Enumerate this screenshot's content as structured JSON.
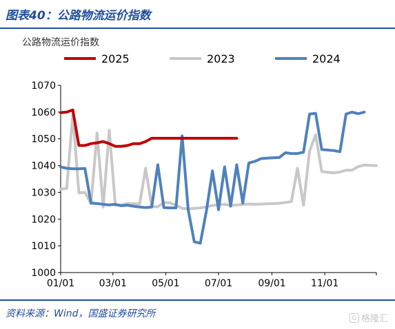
{
  "header": {
    "title": "图表40：公路物流运价指数"
  },
  "footer": {
    "source": "资料来源：Wind，国盛证券研究所"
  },
  "watermark": {
    "text": "格隆汇",
    "icon": "G"
  },
  "chart_data": {
    "type": "line",
    "ylabel": "公路物流运价指数",
    "ylim": [
      1000,
      1070
    ],
    "yticks": [
      1000,
      1010,
      1020,
      1030,
      1040,
      1050,
      1060,
      1070
    ],
    "xlim": [
      1,
      53
    ],
    "xticks": [
      {
        "label": "01/01",
        "pos": 1
      },
      {
        "label": "03/01",
        "pos": 9.6
      },
      {
        "label": "05/01",
        "pos": 18.3
      },
      {
        "label": "07/01",
        "pos": 27
      },
      {
        "label": "09/01",
        "pos": 35.8
      },
      {
        "label": "11/01",
        "pos": 44.5
      }
    ],
    "grid": false,
    "legend": "top",
    "series": [
      {
        "name": "2025",
        "color": "#c00000",
        "values": [
          1059.8,
          1060,
          1060.8,
          1047.5,
          1047.5,
          1048.2,
          1048.5,
          1049,
          1048.2,
          1047.2,
          1047.2,
          1047.5,
          1048.2,
          1048.2,
          1049,
          1050.2,
          1050.2,
          1050.2,
          1050.2,
          1050.2,
          1050.2,
          1050.2,
          1050.2,
          1050.2,
          1050.2,
          1050.2,
          1050.2,
          1050.2,
          1050.2,
          1050.2
        ]
      },
      {
        "name": "2023",
        "color": "#c8c8c8",
        "values": [
          1031.2,
          1031.5,
          1059.2,
          1029.8,
          1030,
          1025.8,
          1052.2,
          1024.5,
          1053.2,
          1025.2,
          1025.3,
          1025.8,
          1025.8,
          1025.6,
          1039,
          1024.6,
          1024.6,
          1026.2,
          1026.1,
          1025.2,
          1024,
          1023.8,
          1024,
          1024.2,
          1024.5,
          1025.1,
          1025.3,
          1025.5,
          1025.1,
          1025.3,
          1025.5,
          1025.6,
          1025.5,
          1025.6,
          1025.7,
          1025.8,
          1025.9,
          1026.2,
          1026.5,
          1039,
          1025.2,
          1045.5,
          1051.5,
          1037.8,
          1037.5,
          1037.3,
          1037.6,
          1038.3,
          1038.3,
          1039.6,
          1040.2,
          1040.1,
          1040
        ]
      },
      {
        "name": "2024",
        "color": "#4f81bd",
        "values": [
          1039.5,
          1039,
          1038.8,
          1038.8,
          1038.9,
          1026,
          1025.8,
          1025.5,
          1025.3,
          1025.5,
          1025,
          1025.2,
          1024.8,
          1024.5,
          1024.3,
          1024.5,
          1040.3,
          1024.3,
          1024.2,
          1024.2,
          1051.1,
          1023.5,
          1011.5,
          1011,
          1023,
          1038,
          1023.5,
          1039.5,
          1024.8,
          1040.3,
          1026,
          1041,
          1041.6,
          1042.6,
          1042.8,
          1042.9,
          1043,
          1044.8,
          1044.5,
          1044.5,
          1045,
          1059.3,
          1059.5,
          1046,
          1045.8,
          1045.6,
          1045.2,
          1059.3,
          1060,
          1059.4,
          1060
        ]
      }
    ]
  }
}
